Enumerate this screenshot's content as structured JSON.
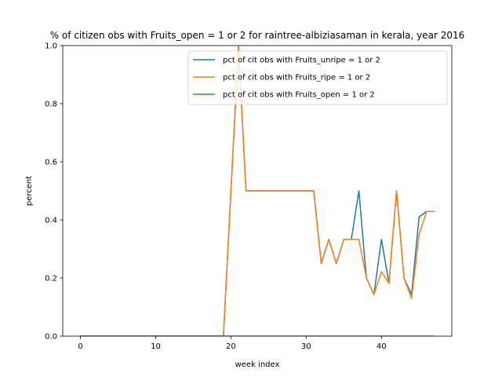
{
  "chart_data": {
    "type": "line",
    "title": "% of citizen obs with Fruits_open = 1 or 2 for raintree-albiziasaman in kerala, year 2016",
    "xlabel": "week index",
    "ylabel": "percent",
    "xlim": [
      -2.35,
      49.35
    ],
    "ylim": [
      0,
      1.0
    ],
    "xticks": [
      0,
      10,
      20,
      30,
      40
    ],
    "yticks": [
      0.0,
      0.2,
      0.4,
      0.6,
      0.8,
      1.0
    ],
    "xtick_labels": [
      "0",
      "10",
      "20",
      "30",
      "40"
    ],
    "ytick_labels": [
      "0.0",
      "0.2",
      "0.4",
      "0.6",
      "0.8",
      "1.0"
    ],
    "grid": false,
    "legend_position": "top-right",
    "series": [
      {
        "name": "pct of cit obs with Fruits_unripe = 1 or 2",
        "color": "#1f77b4",
        "x": [
          0,
          1,
          2,
          3,
          4,
          5,
          6,
          7,
          8,
          9,
          10,
          11,
          12,
          13,
          14,
          15,
          16,
          17,
          18,
          19,
          20,
          21,
          22,
          23,
          24,
          25,
          26,
          27,
          28,
          29,
          30,
          31,
          32,
          33,
          34,
          35,
          36,
          37,
          38,
          39,
          40,
          41,
          42,
          43,
          44,
          45,
          46,
          47
        ],
        "y": [
          0,
          0,
          0,
          0,
          0,
          0,
          0,
          0,
          0,
          0,
          0,
          0,
          0,
          0,
          0,
          0,
          0,
          0,
          0,
          0,
          0.5,
          1.0,
          0.5,
          0.5,
          0.5,
          0.5,
          0.5,
          0.5,
          0.5,
          0.5,
          0.5,
          0.5,
          0.25,
          0.333,
          0.25,
          0.333,
          0.333,
          0.5,
          0.2,
          0.143,
          0.333,
          0.182,
          0.5,
          0.2,
          0.143,
          0.41,
          0.429,
          0.429
        ]
      },
      {
        "name": "pct of cit obs with Fruits_ripe = 1 or 2",
        "color": "#ff7f0e",
        "x": [
          0,
          1,
          2,
          3,
          4,
          5,
          6,
          7,
          8,
          9,
          10,
          11,
          12,
          13,
          14,
          15,
          16,
          17,
          18,
          19,
          20,
          21,
          22,
          23,
          24,
          25,
          26,
          27,
          28,
          29,
          30,
          31,
          32,
          33,
          34,
          35,
          36,
          37,
          38,
          39,
          40,
          41,
          42,
          43,
          44,
          45,
          46,
          47
        ],
        "y": [
          0,
          0,
          0,
          0,
          0,
          0,
          0,
          0,
          0,
          0,
          0,
          0,
          0,
          0,
          0,
          0,
          0,
          0,
          0,
          0,
          0.5,
          1.0,
          0.5,
          0.5,
          0.5,
          0.5,
          0.5,
          0.5,
          0.5,
          0.5,
          0.5,
          0.5,
          0.25,
          0.333,
          0.25,
          0.333,
          0.333,
          0.333,
          0.2,
          0.143,
          0.222,
          0.182,
          0.5,
          0.2,
          0.13,
          0.35,
          0.429,
          0.429
        ]
      },
      {
        "name": "pct of cit obs with Fruits_open = 1 or 2",
        "color": "#2ca02c",
        "x": [
          0,
          1,
          2,
          3,
          4,
          5,
          6,
          7,
          8,
          9,
          10,
          11,
          12,
          13,
          14,
          15,
          16,
          17,
          18,
          19,
          20,
          21,
          22,
          23,
          24,
          25,
          26,
          27,
          28,
          29,
          30,
          31,
          32,
          33,
          34,
          35,
          36,
          37,
          38,
          39,
          40,
          41,
          42,
          43,
          44,
          45,
          46,
          47
        ],
        "y": [
          0,
          0,
          0,
          0,
          0,
          0,
          0,
          0,
          0,
          0,
          0,
          0,
          0,
          0,
          0,
          0,
          0,
          0,
          0,
          0,
          0,
          0,
          0,
          0,
          0,
          0,
          0,
          0,
          0,
          0,
          0,
          0,
          0,
          0,
          0,
          0,
          0,
          0,
          0,
          0,
          0,
          0,
          0,
          0,
          0,
          0,
          0,
          0
        ]
      }
    ]
  }
}
